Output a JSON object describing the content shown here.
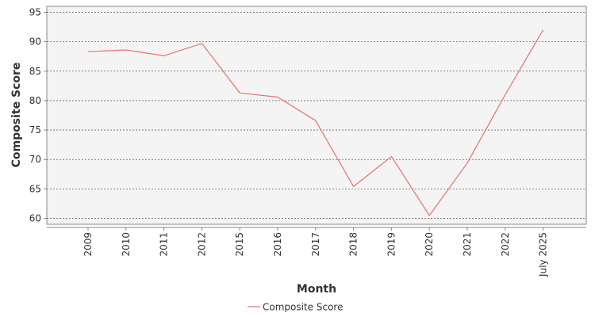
{
  "chart_data": {
    "type": "line",
    "categories": [
      "2009",
      "2010",
      "2011",
      "2012",
      "2015",
      "2016",
      "2017",
      "2018",
      "2019",
      "2020",
      "2021",
      "2022",
      "July 2025"
    ],
    "series": [
      {
        "name": "Composite Score",
        "color": "#e8736d",
        "values": [
          88.3,
          88.6,
          87.6,
          89.7,
          81.3,
          80.6,
          76.6,
          65.4,
          70.5,
          60.5,
          69.4,
          81.0,
          92.0
        ]
      }
    ],
    "xlabel": "Month",
    "ylabel": "Composite Score",
    "ylim": [
      59,
      96
    ],
    "yticks": [
      60,
      65,
      70,
      75,
      80,
      85,
      90,
      95
    ],
    "grid": true,
    "legend": "bottom-center",
    "background_color": "#f4f4f4"
  }
}
